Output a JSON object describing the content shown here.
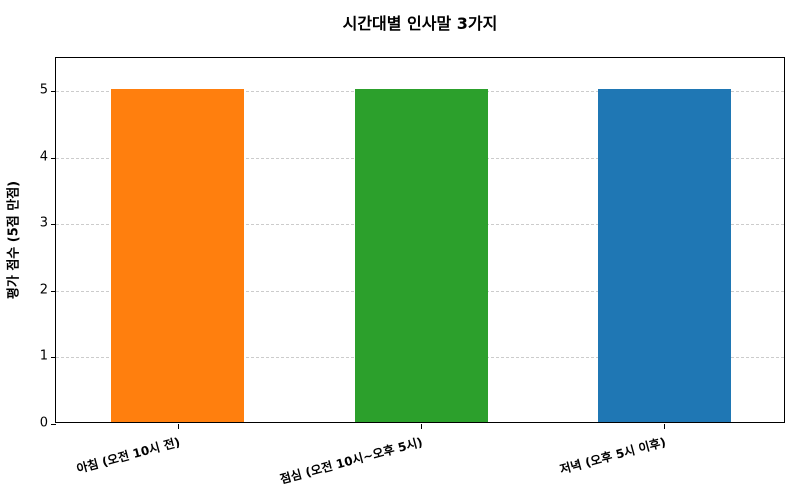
{
  "chart_data": {
    "type": "bar",
    "title": "시간대별 인사말 3가지",
    "xlabel": "",
    "ylabel": "평가 점수 (5점 만점)",
    "categories": [
      "아침 (오전 10시 전)",
      "점심 (오전 10시~오후 5시)",
      "저녁 (오후 5시 이후)"
    ],
    "values": [
      5,
      5,
      5
    ],
    "colors": [
      "#ff7f0e",
      "#2ca02c",
      "#1f77b4"
    ],
    "ylim": [
      0,
      5.5
    ],
    "yticks": [
      0,
      1,
      2,
      3,
      4,
      5
    ],
    "grid": "y-dashed",
    "legend": null
  }
}
